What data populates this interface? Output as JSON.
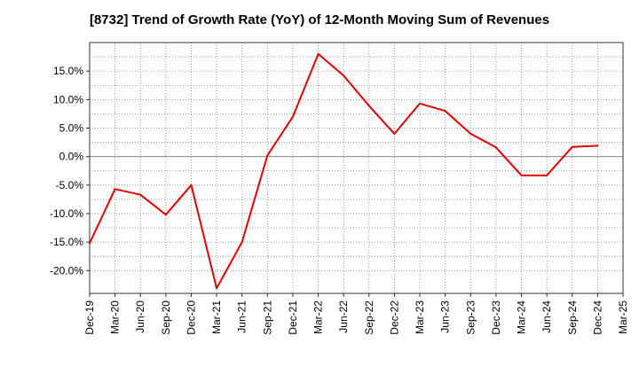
{
  "chart_data": {
    "type": "line",
    "title": "[8732]  Trend of Growth Rate (YoY) of 12-Month Moving Sum of Revenues",
    "xlabel": "",
    "ylabel": "",
    "grid": true,
    "legend": "none",
    "ylim": [
      -24,
      20
    ],
    "yticks": [
      15,
      10,
      5,
      0,
      -5,
      -10,
      -15,
      -20
    ],
    "ytick_labels": [
      "15.0%",
      "10.0%",
      "5.0%",
      "0.0%",
      "-5.0%",
      "-10.0%",
      "-15.0%",
      "-20.0%"
    ],
    "categories": [
      "Dec-19",
      "Mar-20",
      "Jun-20",
      "Sep-20",
      "Dec-20",
      "Mar-21",
      "Jun-21",
      "Sep-21",
      "Dec-21",
      "Mar-22",
      "Jun-22",
      "Sep-22",
      "Dec-22",
      "Mar-23",
      "Jun-23",
      "Sep-23",
      "Dec-23",
      "Mar-24",
      "Jun-24",
      "Sep-24",
      "Dec-24",
      "Mar-25"
    ],
    "series": [
      {
        "color": "#e00000",
        "values": [
          -15.2,
          -5.7,
          -6.7,
          -10.2,
          -5.0,
          -23.1,
          -15.0,
          0.2,
          7.0,
          18.0,
          14.2,
          8.9,
          4.0,
          9.3,
          8.0,
          4.0,
          1.6,
          -3.3,
          -3.3,
          1.7,
          1.9,
          null
        ]
      }
    ]
  }
}
